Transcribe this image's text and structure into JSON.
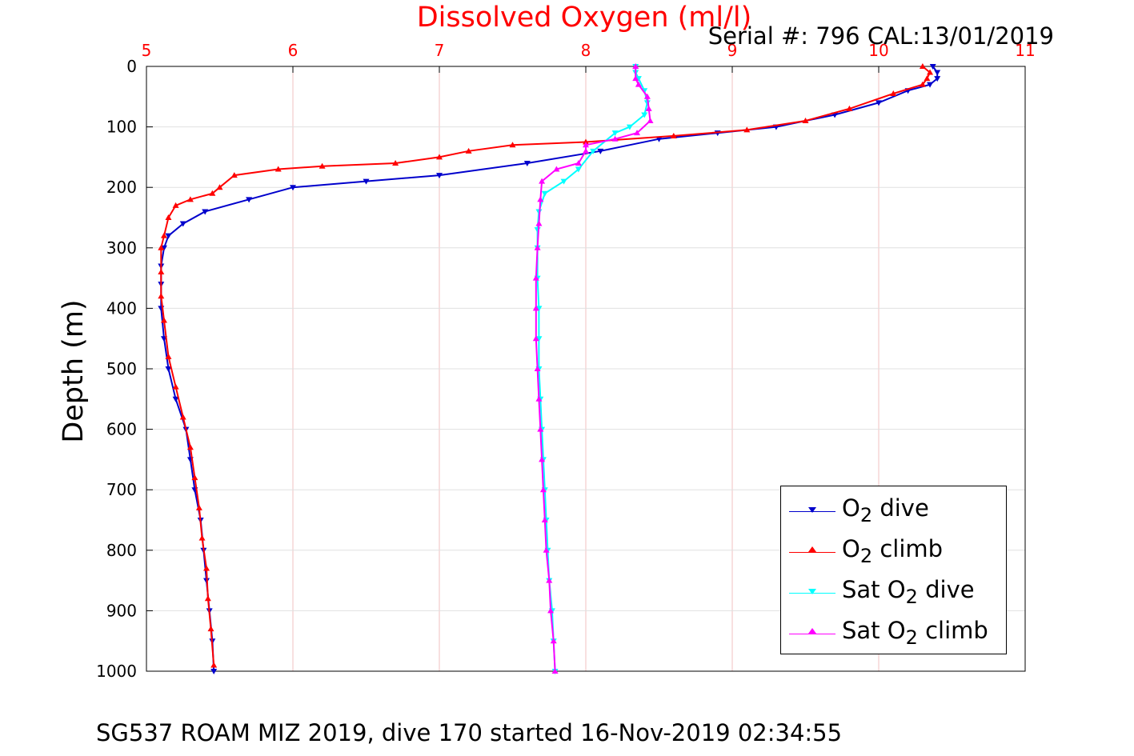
{
  "chart_data": {
    "type": "scatter",
    "title": "Dissolved Oxygen (ml/l)",
    "subtitle": "Serial #: 796  CAL:13/01/2019",
    "footer": "SG537 ROAM MIZ 2019, dive 170 started 16-Nov-2019 02:34:55",
    "xlabel": "",
    "ylabel": "Depth (m)",
    "xlim": [
      5,
      11
    ],
    "ylim": [
      0,
      1000
    ],
    "y_reversed": true,
    "x_axis_position": "top",
    "xticks": [
      5,
      6,
      7,
      8,
      9,
      10,
      11
    ],
    "yticks": [
      0,
      100,
      200,
      300,
      400,
      500,
      600,
      700,
      800,
      900,
      1000
    ],
    "grid": true,
    "legend_position": "bottom-right",
    "colors": {
      "title": "#ff0000",
      "xtick": "#ff0000",
      "grid": "#f2c2c2"
    },
    "legend": [
      {
        "prefix": "O",
        "sub": "2",
        "suffix": " dive",
        "color": "#0000cc",
        "marker": "down"
      },
      {
        "prefix": "O",
        "sub": "2",
        "suffix": " climb",
        "color": "#ff0000",
        "marker": "up"
      },
      {
        "prefix": "Sat O",
        "sub": "2",
        "suffix": " dive",
        "color": "#00ffff",
        "marker": "down"
      },
      {
        "prefix": "Sat O",
        "sub": "2",
        "suffix": " climb",
        "color": "#ff00ff",
        "marker": "up"
      }
    ],
    "series": [
      {
        "name": "O2 dive",
        "color": "#0000cc",
        "marker": "down",
        "points": [
          [
            10.37,
            0
          ],
          [
            10.4,
            10
          ],
          [
            10.4,
            20
          ],
          [
            10.35,
            30
          ],
          [
            10.2,
            40
          ],
          [
            10.0,
            60
          ],
          [
            9.7,
            80
          ],
          [
            9.3,
            100
          ],
          [
            8.9,
            110
          ],
          [
            8.5,
            120
          ],
          [
            8.1,
            140
          ],
          [
            7.6,
            160
          ],
          [
            7.0,
            180
          ],
          [
            6.5,
            190
          ],
          [
            6.0,
            200
          ],
          [
            5.7,
            220
          ],
          [
            5.4,
            240
          ],
          [
            5.25,
            260
          ],
          [
            5.15,
            280
          ],
          [
            5.12,
            300
          ],
          [
            5.1,
            330
          ],
          [
            5.1,
            360
          ],
          [
            5.1,
            400
          ],
          [
            5.12,
            450
          ],
          [
            5.15,
            500
          ],
          [
            5.2,
            550
          ],
          [
            5.27,
            600
          ],
          [
            5.3,
            650
          ],
          [
            5.33,
            700
          ],
          [
            5.37,
            750
          ],
          [
            5.39,
            800
          ],
          [
            5.41,
            850
          ],
          [
            5.43,
            900
          ],
          [
            5.45,
            950
          ],
          [
            5.46,
            1000
          ]
        ]
      },
      {
        "name": "O2 climb",
        "color": "#ff0000",
        "marker": "up",
        "points": [
          [
            10.3,
            0
          ],
          [
            10.35,
            10
          ],
          [
            10.33,
            20
          ],
          [
            10.3,
            30
          ],
          [
            10.1,
            45
          ],
          [
            9.8,
            70
          ],
          [
            9.5,
            90
          ],
          [
            9.1,
            105
          ],
          [
            8.6,
            115
          ],
          [
            8.0,
            125
          ],
          [
            7.5,
            130
          ],
          [
            7.2,
            140
          ],
          [
            7.0,
            150
          ],
          [
            6.7,
            160
          ],
          [
            6.2,
            165
          ],
          [
            5.9,
            170
          ],
          [
            5.6,
            180
          ],
          [
            5.5,
            200
          ],
          [
            5.45,
            210
          ],
          [
            5.3,
            220
          ],
          [
            5.2,
            230
          ],
          [
            5.15,
            250
          ],
          [
            5.12,
            280
          ],
          [
            5.1,
            300
          ],
          [
            5.1,
            340
          ],
          [
            5.1,
            380
          ],
          [
            5.12,
            420
          ],
          [
            5.15,
            480
          ],
          [
            5.2,
            530
          ],
          [
            5.25,
            580
          ],
          [
            5.3,
            630
          ],
          [
            5.33,
            680
          ],
          [
            5.36,
            730
          ],
          [
            5.38,
            780
          ],
          [
            5.41,
            830
          ],
          [
            5.42,
            880
          ],
          [
            5.44,
            930
          ],
          [
            5.46,
            990
          ]
        ]
      },
      {
        "name": "Sat O2 dive",
        "color": "#00ffff",
        "marker": "down",
        "points": [
          [
            8.34,
            0
          ],
          [
            8.34,
            10
          ],
          [
            8.36,
            20
          ],
          [
            8.4,
            40
          ],
          [
            8.42,
            60
          ],
          [
            8.4,
            80
          ],
          [
            8.3,
            100
          ],
          [
            8.2,
            110
          ],
          [
            8.05,
            140
          ],
          [
            7.95,
            170
          ],
          [
            7.85,
            190
          ],
          [
            7.72,
            210
          ],
          [
            7.68,
            240
          ],
          [
            7.67,
            270
          ],
          [
            7.67,
            300
          ],
          [
            7.67,
            350
          ],
          [
            7.68,
            400
          ],
          [
            7.68,
            450
          ],
          [
            7.68,
            500
          ],
          [
            7.69,
            550
          ],
          [
            7.7,
            600
          ],
          [
            7.71,
            650
          ],
          [
            7.72,
            700
          ],
          [
            7.73,
            750
          ],
          [
            7.74,
            800
          ],
          [
            7.75,
            850
          ],
          [
            7.77,
            900
          ],
          [
            7.78,
            950
          ],
          [
            7.79,
            1000
          ]
        ]
      },
      {
        "name": "Sat O2 climb",
        "color": "#ff00ff",
        "marker": "up",
        "points": [
          [
            8.34,
            0
          ],
          [
            8.34,
            20
          ],
          [
            8.36,
            30
          ],
          [
            8.42,
            50
          ],
          [
            8.43,
            70
          ],
          [
            8.44,
            90
          ],
          [
            8.35,
            110
          ],
          [
            8.2,
            120
          ],
          [
            8.0,
            130
          ],
          [
            8.0,
            140
          ],
          [
            7.95,
            160
          ],
          [
            7.8,
            170
          ],
          [
            7.7,
            190
          ],
          [
            7.69,
            220
          ],
          [
            7.68,
            260
          ],
          [
            7.67,
            300
          ],
          [
            7.66,
            350
          ],
          [
            7.66,
            400
          ],
          [
            7.66,
            450
          ],
          [
            7.67,
            500
          ],
          [
            7.68,
            550
          ],
          [
            7.69,
            600
          ],
          [
            7.7,
            650
          ],
          [
            7.71,
            700
          ],
          [
            7.72,
            750
          ],
          [
            7.73,
            800
          ],
          [
            7.75,
            850
          ],
          [
            7.76,
            900
          ],
          [
            7.78,
            950
          ],
          [
            7.79,
            1000
          ]
        ]
      }
    ]
  }
}
